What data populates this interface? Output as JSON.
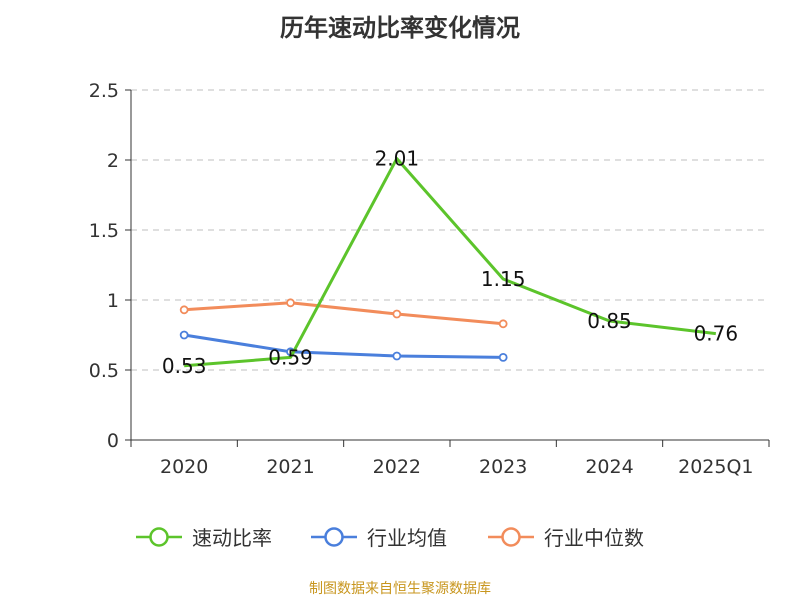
{
  "title": "历年速动比率变化情况",
  "footer": "制图数据来自恒生聚源数据库",
  "chart_data": {
    "type": "line",
    "title": "历年速动比率变化情况",
    "categories": [
      "2020",
      "2021",
      "2022",
      "2023",
      "2024",
      "2025Q1"
    ],
    "ylim": [
      0,
      2.5
    ],
    "yticks": [
      0,
      0.5,
      1,
      1.5,
      2,
      2.5
    ],
    "ytick_labels": [
      "0",
      "0.5",
      "1",
      "1.5",
      "2",
      "2.5"
    ],
    "grid": true,
    "legend_position": "bottom",
    "series": [
      {
        "name": "速动比率",
        "color": "#5cc42b",
        "values": [
          0.53,
          0.59,
          2.01,
          1.15,
          0.85,
          0.76
        ],
        "labels": [
          "0.53",
          "0.59",
          "2.01",
          "1.15",
          "0.85",
          "0.76"
        ]
      },
      {
        "name": "行业均值",
        "color": "#4a7fdc",
        "values": [
          0.75,
          0.63,
          0.6,
          0.59,
          null,
          null
        ]
      },
      {
        "name": "行业中位数",
        "color": "#f28c5b",
        "values": [
          0.93,
          0.98,
          0.9,
          0.83,
          null,
          null
        ]
      }
    ]
  }
}
